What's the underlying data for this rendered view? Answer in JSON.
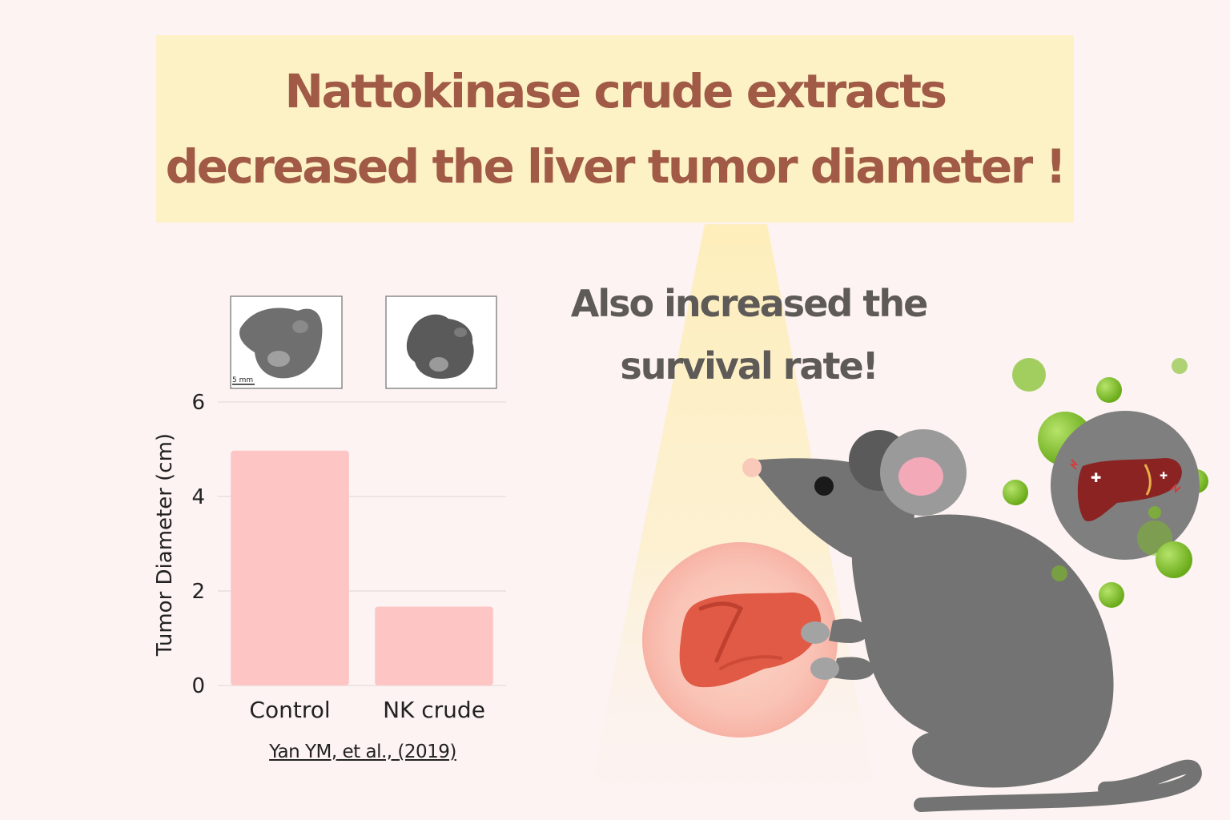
{
  "title": {
    "line1": "Nattokinase  crude extracts",
    "line2": "decreased the liver tumor diameter !"
  },
  "subtitle": {
    "line1": "Also  increased the",
    "line2": "survival rate!"
  },
  "citation": "Yan YM, et al., (2019)",
  "scale_bar_label": "5 mm",
  "colors": {
    "background": "#fcf3f2",
    "title_box": "#fdf2c6",
    "title_text": "#a05a45",
    "bar": "#fec5c5",
    "mouse": "#737373",
    "bubble": "#7cbd22",
    "liver": "#e05a45"
  },
  "chart_data": {
    "type": "bar",
    "categories": [
      "Control",
      "NK crude"
    ],
    "values": [
      4.97,
      1.67
    ],
    "ylabel": "Tumor Diameter (cm)",
    "xlabel": "",
    "ylim": [
      0,
      6
    ],
    "yticks": [
      0,
      2,
      4,
      6
    ],
    "grid": true,
    "bar_color": "#fec5c5"
  }
}
